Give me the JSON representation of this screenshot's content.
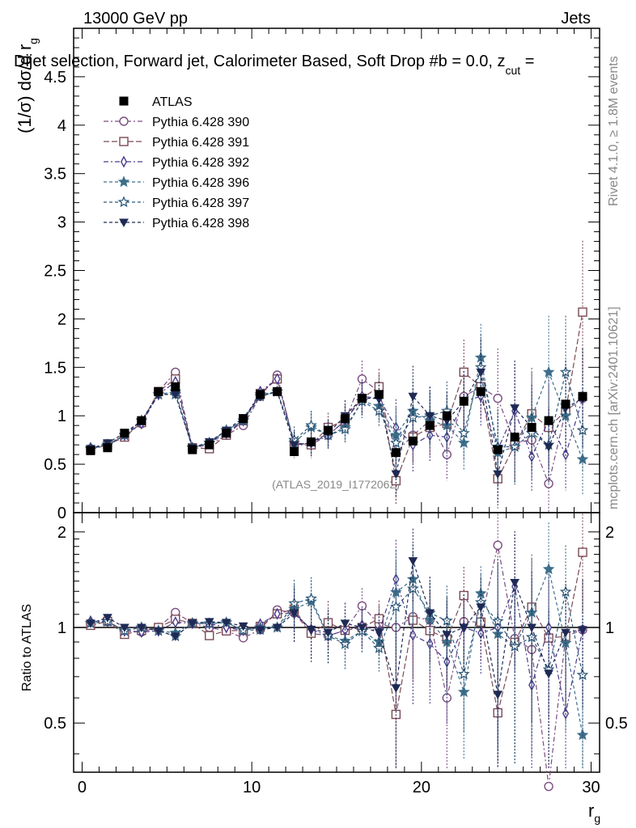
{
  "header": {
    "left": "13000 GeV pp",
    "right": "Jets",
    "title": "Dijet selection, Forward jet, Calorimeter Based, Soft Drop #b = 0.0, z",
    "title_sub": "cut",
    "title_tail": " ="
  },
  "side_text": {
    "top": "Rivet 4.1.0, ≥ 1.8M events",
    "bottom": "mcplots.cern.ch [arXiv:2401.10621]"
  },
  "watermark": "(ATLAS_2019_I1772062)",
  "chart_data": {
    "type": "line",
    "xlabel": "r",
    "xlabel_sub": "g",
    "ylabel_main": "(1/σ) dσ/d r",
    "ylabel_main_sub": "g",
    "ylabel_ratio": "Ratio to ATLAS",
    "xlim": [
      -0.5,
      30.5
    ],
    "ylim_main": [
      0,
      5
    ],
    "ylim_ratio": [
      0.35,
      2.3
    ],
    "x_ticks": [
      0,
      10,
      20,
      30
    ],
    "y_ticks_main": [
      "0",
      "0.5",
      "1",
      "1.5",
      "2",
      "2.5",
      "3",
      "3.5",
      "4",
      "4.5"
    ],
    "y_ticks_main_values": [
      0,
      0.5,
      1,
      1.5,
      2,
      2.5,
      3,
      3.5,
      4,
      4.5
    ],
    "y_ticks_ratio": [
      "0.5",
      "1",
      "2"
    ],
    "y_ticks_ratio_values": [
      0.5,
      1,
      2
    ],
    "x": [
      0.5,
      1.5,
      2.5,
      3.5,
      4.5,
      5.5,
      6.5,
      7.5,
      8.5,
      9.5,
      10.5,
      11.5,
      12.5,
      13.5,
      14.5,
      15.5,
      16.5,
      17.5,
      18.5,
      19.5,
      20.5,
      21.5,
      22.5,
      23.5,
      24.5,
      25.5,
      26.5,
      27.5,
      28.5,
      29.5
    ],
    "atlas": {
      "name": "ATLAS",
      "color": "#000000",
      "values": [
        0.64,
        0.67,
        0.82,
        0.95,
        1.25,
        1.3,
        0.65,
        0.7,
        0.82,
        0.97,
        1.22,
        1.25,
        0.63,
        0.73,
        0.85,
        0.97,
        1.18,
        1.22,
        0.62,
        0.74,
        0.9,
        1.0,
        1.15,
        1.25,
        0.65,
        0.78,
        0.88,
        0.95,
        1.12,
        1.2
      ]
    },
    "series": [
      {
        "name": "Pythia 6.428 390",
        "color": "#7a4d7f",
        "marker": "circle-open",
        "dash": "6,3,2,3",
        "values": [
          0.66,
          0.7,
          0.8,
          0.92,
          1.25,
          1.45,
          0.67,
          0.7,
          0.8,
          0.9,
          1.2,
          1.42,
          0.7,
          0.7,
          0.8,
          0.95,
          1.38,
          1.25,
          0.62,
          0.8,
          0.95,
          0.6,
          1.2,
          1.3,
          1.18,
          0.72,
          0.75,
          0.3,
          1.05,
          1.18
        ]
      },
      {
        "name": "Pythia 6.428 391",
        "color": "#7b4a55",
        "marker": "square-open",
        "dash": "7,3",
        "values": [
          0.65,
          0.7,
          0.78,
          0.93,
          1.25,
          1.38,
          0.67,
          0.66,
          0.8,
          0.95,
          1.23,
          1.38,
          0.72,
          0.7,
          0.88,
          0.95,
          1.18,
          1.3,
          0.33,
          0.78,
          0.88,
          0.92,
          1.45,
          1.3,
          0.35,
          0.7,
          1.02,
          0.88,
          1.05,
          2.07
        ]
      },
      {
        "name": "Pythia 6.428 392",
        "color": "#4b3a8c",
        "marker": "diamond-open",
        "dash": "6,3,2,3",
        "values": [
          0.67,
          0.7,
          0.8,
          0.92,
          1.22,
          1.35,
          0.67,
          0.72,
          0.82,
          0.95,
          1.25,
          1.38,
          0.7,
          0.72,
          0.8,
          0.95,
          1.2,
          1.18,
          0.88,
          0.7,
          0.8,
          0.78,
          1.15,
          1.2,
          0.65,
          1.05,
          0.58,
          0.95,
          0.6,
          1.18
        ]
      },
      {
        "name": "Pythia 6.428 396",
        "color": "#3d6e8a",
        "marker": "star-filled",
        "dash": "4,3",
        "values": [
          0.66,
          0.7,
          0.8,
          0.95,
          1.22,
          1.25,
          0.67,
          0.72,
          0.85,
          0.95,
          1.22,
          1.25,
          0.72,
          0.88,
          0.8,
          0.88,
          1.15,
          1.1,
          0.8,
          1.05,
          0.95,
          0.9,
          0.72,
          1.6,
          0.62,
          0.68,
          0.98,
          1.45,
          1.0,
          0.55
        ]
      },
      {
        "name": "Pythia 6.428 397",
        "color": "#2f5a7a",
        "marker": "star-open",
        "dash": "4,3",
        "values": [
          0.66,
          0.7,
          0.8,
          0.95,
          1.22,
          1.22,
          0.67,
          0.72,
          0.85,
          0.95,
          1.2,
          1.25,
          0.75,
          0.9,
          0.8,
          0.86,
          1.15,
          1.05,
          0.72,
          0.98,
          1.0,
          1.05,
          0.82,
          1.5,
          0.68,
          0.68,
          0.82,
          0.7,
          1.45,
          0.85
        ]
      },
      {
        "name": "Pythia 6.428 398",
        "color": "#1e2a55",
        "marker": "triangle-down",
        "dash": "4,3",
        "values": [
          0.66,
          0.72,
          0.82,
          0.95,
          1.22,
          1.22,
          0.67,
          0.73,
          0.85,
          0.98,
          1.2,
          1.25,
          0.7,
          0.72,
          0.82,
          1.0,
          1.18,
          1.18,
          0.4,
          1.2,
          1.0,
          0.95,
          1.15,
          1.45,
          0.4,
          1.08,
          0.88,
          0.68,
          1.08,
          1.18
        ]
      }
    ]
  }
}
